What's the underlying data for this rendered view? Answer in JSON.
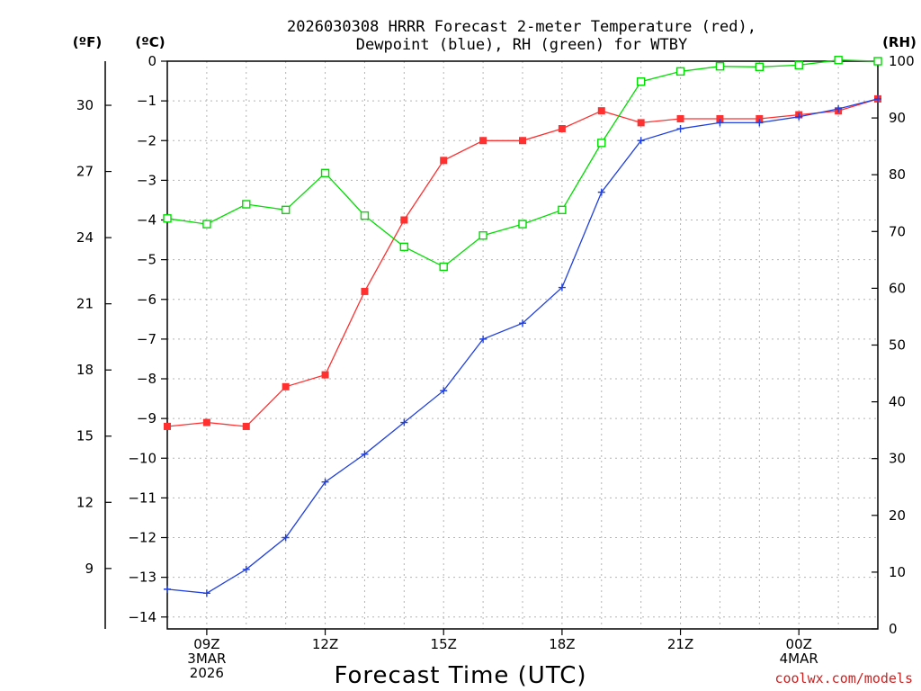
{
  "chart_data": {
    "type": "line",
    "title_line1": "2026030308 HRRR Forecast 2-meter Temperature (red),",
    "title_line2": "Dewpoint (blue), RH (green) for WTBY",
    "xlabel": "Forecast Time (UTC)",
    "credit": "coolwx.com/models",
    "unit_f": "(ºF)",
    "unit_c": "(ºC)",
    "unit_rh": "(RH)",
    "x": [
      8,
      9,
      10,
      11,
      12,
      13,
      14,
      15,
      16,
      17,
      18,
      19,
      20,
      21,
      22,
      23,
      24,
      25,
      26
    ],
    "xlim": [
      8,
      26
    ],
    "x_ticks": [
      {
        "x": 9,
        "lines": [
          "09Z",
          "3MAR",
          "2026"
        ]
      },
      {
        "x": 12,
        "lines": [
          "12Z"
        ]
      },
      {
        "x": 15,
        "lines": [
          "15Z"
        ]
      },
      {
        "x": 18,
        "lines": [
          "18Z"
        ]
      },
      {
        "x": 21,
        "lines": [
          "21Z"
        ]
      },
      {
        "x": 24,
        "lines": [
          "00Z",
          "4MAR"
        ]
      }
    ],
    "ylim_c": [
      -14.3,
      0
    ],
    "y_ticks_c": [
      "0",
      "−1",
      "−2",
      "−3",
      "−4",
      "−5",
      "−6",
      "−7",
      "−8",
      "−9",
      "−10",
      "−11",
      "−12",
      "−13",
      "−14"
    ],
    "y_tick_values_c": [
      0,
      -1,
      -2,
      -3,
      -4,
      -5,
      -6,
      -7,
      -8,
      -9,
      -10,
      -11,
      -12,
      -13,
      -14
    ],
    "y_ticks_f": [
      "30",
      "27",
      "24",
      "21",
      "18",
      "15",
      "12",
      "9"
    ],
    "y_tick_values_f": [
      30,
      27,
      24,
      21,
      18,
      15,
      12,
      9
    ],
    "ylim_rh": [
      0,
      100
    ],
    "y_ticks_rh": [
      "100",
      "90",
      "80",
      "70",
      "60",
      "50",
      "40",
      "30",
      "20",
      "10",
      "0"
    ],
    "y_tick_values_rh": [
      100,
      90,
      80,
      70,
      60,
      50,
      40,
      30,
      20,
      10,
      0
    ],
    "series": [
      {
        "name": "Temperature",
        "unit": "C",
        "color": "#ff3030",
        "marker": "filled-square",
        "values": [
          -9.2,
          -9.1,
          -9.2,
          -8.2,
          -7.9,
          -5.8,
          -4.0,
          -2.5,
          -2.0,
          -2.0,
          -1.7,
          -1.25,
          -1.55,
          -1.45,
          -1.45,
          -1.45,
          -1.35,
          -1.25,
          -0.95
        ]
      },
      {
        "name": "Dewpoint",
        "unit": "C",
        "color": "#2040e0",
        "marker": "plus",
        "values": [
          -13.3,
          -13.4,
          -12.8,
          -12.0,
          -10.6,
          -9.9,
          -9.1,
          -8.3,
          -7.0,
          -6.6,
          -5.7,
          -3.3,
          -2.0,
          -1.7,
          -1.55,
          -1.55,
          -1.4,
          -1.2,
          -0.95
        ]
      },
      {
        "name": "RH",
        "unit": "%",
        "color": "#00dd00",
        "marker": "open-square",
        "values": [
          72.3,
          71.3,
          74.8,
          73.8,
          80.3,
          72.8,
          67.3,
          63.8,
          69.3,
          71.3,
          73.8,
          85.6,
          96.4,
          98.2,
          99.1,
          99.0,
          99.3,
          100.2,
          100.0
        ]
      }
    ],
    "grid": true,
    "legend": "none"
  }
}
